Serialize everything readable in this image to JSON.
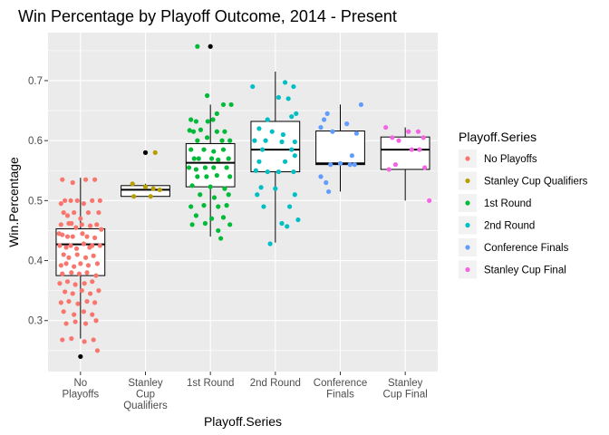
{
  "chart_data": {
    "type": "boxplot-jitter",
    "title": "Win Percentage by Playoff Outcome, 2014 - Present",
    "xlabel": "Playoff.Series",
    "ylabel": "Win.Percentage",
    "ylim": [
      0.215,
      0.78
    ],
    "yticks": [
      "0.3",
      "0.4",
      "0.5",
      "0.6",
      "0.7"
    ],
    "grid": true,
    "legend": {
      "title": "Playoff.Series",
      "placement": "right"
    },
    "categories": [
      {
        "name": "No Playoffs",
        "tick_lines": [
          "No",
          "Playoffs"
        ]
      },
      {
        "name": "Stanley Cup Qualifiers",
        "tick_lines": [
          "Stanley",
          "Cup",
          "Qualifiers"
        ]
      },
      {
        "name": "1st Round",
        "tick_lines": [
          "1st Round"
        ]
      },
      {
        "name": "2nd Round",
        "tick_lines": [
          "2nd Round"
        ]
      },
      {
        "name": "Conference Finals",
        "tick_lines": [
          "Conference",
          "Finals"
        ]
      },
      {
        "name": "Stanley Cup Final",
        "tick_lines": [
          "Stanley",
          "Cup Final"
        ]
      }
    ],
    "colors": {
      "No Playoffs": "#F8766D",
      "Stanley Cup Qualifiers": "#B79F00",
      "1st Round": "#00BA38",
      "2nd Round": "#00BFC4",
      "Conference Finals": "#619CFF",
      "Stanley Cup Final": "#F564E3"
    },
    "boxes": [
      {
        "category": "No Playoffs",
        "lower_whisker": 0.27,
        "q1": 0.375,
        "median": 0.427,
        "q3": 0.453,
        "upper_whisker": 0.538,
        "outliers": [
          0.24
        ]
      },
      {
        "category": "Stanley Cup Qualifiers",
        "lower_whisker": 0.507,
        "q1": 0.507,
        "median": 0.518,
        "q3": 0.525,
        "upper_whisker": 0.528,
        "outliers": [
          0.58
        ]
      },
      {
        "category": "1st Round",
        "lower_whisker": 0.44,
        "q1": 0.523,
        "median": 0.563,
        "q3": 0.595,
        "upper_whisker": 0.66,
        "outliers": [
          0.757
        ]
      },
      {
        "category": "2nd Round",
        "lower_whisker": 0.43,
        "q1": 0.548,
        "median": 0.585,
        "q3": 0.632,
        "upper_whisker": 0.715,
        "outliers": []
      },
      {
        "category": "Conference Finals",
        "lower_whisker": 0.515,
        "q1": 0.56,
        "median": 0.562,
        "q3": 0.616,
        "upper_whisker": 0.66,
        "outliers": []
      },
      {
        "category": "Stanley Cup Final",
        "lower_whisker": 0.5,
        "q1": 0.552,
        "median": 0.585,
        "q3": 0.606,
        "upper_whisker": 0.622,
        "outliers": []
      }
    ],
    "points": {
      "No Playoffs": [
        [
          -0.28,
          0.535
        ],
        [
          -0.12,
          0.53
        ],
        [
          0.08,
          0.535
        ],
        [
          0.22,
          0.535
        ],
        [
          -0.24,
          0.5
        ],
        [
          -0.3,
          0.495
        ],
        [
          -0.15,
          0.5
        ],
        [
          -0.05,
          0.5
        ],
        [
          0.05,
          0.495
        ],
        [
          0.18,
          0.5
        ],
        [
          -0.26,
          0.48
        ],
        [
          -0.2,
          0.475
        ],
        [
          -0.1,
          0.48
        ],
        [
          0.0,
          0.47
        ],
        [
          0.12,
          0.48
        ],
        [
          0.28,
          0.48
        ],
        [
          -0.3,
          0.46
        ],
        [
          -0.18,
          0.462
        ],
        [
          -0.07,
          0.455
        ],
        [
          0.02,
          0.46
        ],
        [
          0.15,
          0.458
        ],
        [
          0.25,
          0.46
        ],
        [
          -0.28,
          0.443
        ],
        [
          -0.2,
          0.44
        ],
        [
          -0.12,
          0.44
        ],
        [
          0.03,
          0.445
        ],
        [
          0.1,
          0.44
        ],
        [
          0.22,
          0.438
        ],
        [
          -0.32,
          0.425
        ],
        [
          -0.22,
          0.422
        ],
        [
          -0.15,
          0.425
        ],
        [
          -0.06,
          0.42
        ],
        [
          0.05,
          0.428
        ],
        [
          0.14,
          0.422
        ],
        [
          0.3,
          0.425
        ],
        [
          -0.26,
          0.41
        ],
        [
          -0.18,
          0.405
        ],
        [
          -0.05,
          0.41
        ],
        [
          0.08,
          0.405
        ],
        [
          0.2,
          0.408
        ],
        [
          -0.3,
          0.392
        ],
        [
          -0.22,
          0.395
        ],
        [
          -0.1,
          0.39
        ],
        [
          0.0,
          0.395
        ],
        [
          0.12,
          0.392
        ],
        [
          0.26,
          0.395
        ],
        [
          -0.28,
          0.378
        ],
        [
          -0.14,
          0.38
        ],
        [
          -0.02,
          0.378
        ],
        [
          0.1,
          0.38
        ],
        [
          0.24,
          0.375
        ],
        [
          -0.32,
          0.362
        ],
        [
          -0.2,
          0.365
        ],
        [
          -0.08,
          0.36
        ],
        [
          0.06,
          0.362
        ],
        [
          0.18,
          0.365
        ],
        [
          -0.24,
          0.348
        ],
        [
          -0.12,
          0.345
        ],
        [
          0.02,
          0.35
        ],
        [
          0.15,
          0.345
        ],
        [
          0.28,
          0.35
        ],
        [
          -0.3,
          0.33
        ],
        [
          -0.18,
          0.332
        ],
        [
          -0.04,
          0.328
        ],
        [
          0.1,
          0.332
        ],
        [
          0.22,
          0.33
        ],
        [
          -0.26,
          0.315
        ],
        [
          -0.1,
          0.31
        ],
        [
          0.05,
          0.315
        ],
        [
          0.18,
          0.31
        ],
        [
          -0.22,
          0.295
        ],
        [
          -0.08,
          0.298
        ],
        [
          0.08,
          0.295
        ],
        [
          0.24,
          0.3
        ],
        [
          -0.28,
          0.268
        ],
        [
          -0.14,
          0.27
        ],
        [
          0.06,
          0.265
        ],
        [
          0.2,
          0.268
        ],
        [
          0.26,
          0.25
        ],
        [
          0.32,
          0.452
        ],
        [
          -0.33,
          0.445
        ],
        [
          0.3,
          0.5
        ],
        [
          -0.14,
          0.462
        ],
        [
          0.18,
          0.425
        ]
      ],
      "Stanley Cup Qualifiers": [
        [
          0.15,
          0.58
        ],
        [
          -0.2,
          0.528
        ],
        [
          0.0,
          0.523
        ],
        [
          0.12,
          0.52
        ],
        [
          0.22,
          0.518
        ],
        [
          -0.18,
          0.507
        ],
        [
          0.08,
          0.507
        ]
      ],
      "1st Round": [
        [
          0.2,
          0.66
        ],
        [
          0.32,
          0.66
        ],
        [
          0.1,
          0.645
        ],
        [
          -0.3,
          0.635
        ],
        [
          -0.22,
          0.632
        ],
        [
          -0.04,
          0.632
        ],
        [
          0.04,
          0.635
        ],
        [
          -0.32,
          0.617
        ],
        [
          -0.26,
          0.615
        ],
        [
          -0.15,
          0.618
        ],
        [
          0.1,
          0.615
        ],
        [
          0.22,
          0.615
        ],
        [
          -0.05,
          0.605
        ],
        [
          0.18,
          0.6
        ],
        [
          0.3,
          0.6
        ],
        [
          -0.2,
          0.6
        ],
        [
          -0.3,
          0.585
        ],
        [
          -0.1,
          0.585
        ],
        [
          0.05,
          0.582
        ],
        [
          0.2,
          0.585
        ],
        [
          -0.25,
          0.57
        ],
        [
          -0.18,
          0.57
        ],
        [
          0.02,
          0.57
        ],
        [
          0.12,
          0.568
        ],
        [
          0.28,
          0.57
        ],
        [
          -0.33,
          0.555
        ],
        [
          -0.22,
          0.552
        ],
        [
          -0.08,
          0.555
        ],
        [
          0.05,
          0.555
        ],
        [
          0.25,
          0.555
        ],
        [
          -0.2,
          0.54
        ],
        [
          -0.06,
          0.54
        ],
        [
          0.1,
          0.542
        ],
        [
          0.3,
          0.54
        ],
        [
          -0.28,
          0.525
        ],
        [
          0.0,
          0.523
        ],
        [
          0.22,
          0.52
        ],
        [
          -0.16,
          0.51
        ],
        [
          0.06,
          0.505
        ],
        [
          0.28,
          0.51
        ],
        [
          -0.3,
          0.49
        ],
        [
          -0.1,
          0.492
        ],
        [
          0.12,
          0.49
        ],
        [
          0.25,
          0.492
        ],
        [
          -0.22,
          0.475
        ],
        [
          0.02,
          0.47
        ],
        [
          0.2,
          0.472
        ],
        [
          -0.28,
          0.46
        ],
        [
          -0.08,
          0.462
        ],
        [
          0.3,
          0.46
        ],
        [
          0.12,
          0.45
        ],
        [
          0.16,
          0.437
        ],
        [
          -0.2,
          0.757
        ],
        [
          -0.05,
          0.675
        ]
      ],
      "2nd Round": [
        [
          0.15,
          0.697
        ],
        [
          -0.35,
          0.69
        ],
        [
          0.28,
          0.69
        ],
        [
          0.2,
          0.67
        ],
        [
          0.05,
          0.672
        ],
        [
          0.32,
          0.645
        ],
        [
          0.25,
          0.64
        ],
        [
          -0.12,
          0.635
        ],
        [
          -0.25,
          0.62
        ],
        [
          -0.05,
          0.615
        ],
        [
          0.12,
          0.61
        ],
        [
          -0.32,
          0.6
        ],
        [
          -0.15,
          0.6
        ],
        [
          0.3,
          0.598
        ],
        [
          0.1,
          0.598
        ],
        [
          0.25,
          0.585
        ],
        [
          -0.2,
          0.585
        ],
        [
          0.3,
          0.575
        ],
        [
          -0.25,
          0.565
        ],
        [
          0.15,
          0.565
        ],
        [
          -0.3,
          0.55
        ],
        [
          -0.12,
          0.548
        ],
        [
          0.05,
          0.548
        ],
        [
          0.28,
          0.548
        ],
        [
          -0.22,
          0.522
        ],
        [
          0.0,
          0.52
        ],
        [
          -0.28,
          0.51
        ],
        [
          0.3,
          0.51
        ],
        [
          -0.18,
          0.49
        ],
        [
          0.22,
          0.49
        ],
        [
          0.35,
          0.468
        ],
        [
          0.1,
          0.462
        ],
        [
          0.18,
          0.457
        ],
        [
          -0.08,
          0.428
        ]
      ],
      "Conference Finals": [
        [
          0.32,
          0.66
        ],
        [
          -0.2,
          0.645
        ],
        [
          -0.25,
          0.635
        ],
        [
          0.1,
          0.628
        ],
        [
          -0.3,
          0.622
        ],
        [
          -0.12,
          0.615
        ],
        [
          0.25,
          0.612
        ],
        [
          0.18,
          0.575
        ],
        [
          -0.15,
          0.56
        ],
        [
          0.0,
          0.562
        ],
        [
          0.15,
          0.56
        ],
        [
          0.22,
          0.56
        ],
        [
          -0.3,
          0.54
        ],
        [
          -0.22,
          0.53
        ],
        [
          -0.18,
          0.515
        ]
      ],
      "Stanley Cup Final": [
        [
          -0.3,
          0.622
        ],
        [
          -0.2,
          0.605
        ],
        [
          0.05,
          0.615
        ],
        [
          0.2,
          0.615
        ],
        [
          -0.1,
          0.6
        ],
        [
          0.28,
          0.605
        ],
        [
          0.22,
          0.585
        ],
        [
          -0.15,
          0.56
        ],
        [
          0.3,
          0.555
        ],
        [
          -0.25,
          0.552
        ],
        [
          0.1,
          0.585
        ],
        [
          0.37,
          0.5
        ]
      ]
    }
  }
}
